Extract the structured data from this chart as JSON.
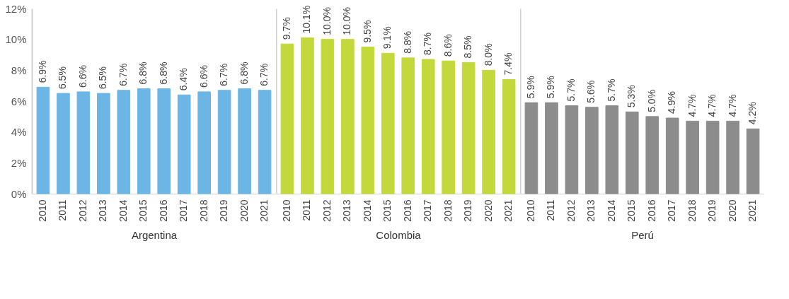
{
  "chart_data": [
    {
      "type": "bar",
      "xlabel": "Argentina",
      "categories": [
        "2010",
        "2011",
        "2012",
        "2013",
        "2014",
        "2015",
        "2016",
        "2017",
        "2018",
        "2019",
        "2020",
        "2021"
      ],
      "values": [
        6.9,
        6.5,
        6.6,
        6.5,
        6.7,
        6.8,
        6.8,
        6.4,
        6.6,
        6.7,
        6.8,
        6.7
      ],
      "value_labels": [
        "6.9%",
        "6.5%",
        "6.6%",
        "6.5%",
        "6.7%",
        "6.8%",
        "6.8%",
        "6.4%",
        "6.6%",
        "6.7%",
        "6.8%",
        "6.7%"
      ],
      "color": "#6cb6e6",
      "ylim": [
        0,
        12
      ],
      "yticks": [
        {
          "value": 0,
          "label": "0%"
        },
        {
          "value": 2,
          "label": "2%"
        },
        {
          "value": 4,
          "label": "4%"
        },
        {
          "value": 6,
          "label": "6%"
        },
        {
          "value": 8,
          "label": "8%"
        },
        {
          "value": 10,
          "label": "10%"
        },
        {
          "value": 12,
          "label": "12%"
        }
      ],
      "grid": false
    },
    {
      "type": "bar",
      "xlabel": "Colombia",
      "categories": [
        "2010",
        "2011",
        "2012",
        "2013",
        "2014",
        "2015",
        "2016",
        "2017",
        "2018",
        "2019",
        "2020",
        "2021"
      ],
      "values": [
        9.7,
        10.1,
        10.0,
        10.0,
        9.5,
        9.1,
        8.8,
        8.7,
        8.6,
        8.5,
        8.0,
        7.4
      ],
      "value_labels": [
        "9.7%",
        "10.1%",
        "10.0%",
        "10.0%",
        "9.5%",
        "9.1%",
        "8.8%",
        "8.7%",
        "8.6%",
        "8.5%",
        "8.0%",
        "7.4%"
      ],
      "color": "#c3d83a",
      "ylim": [
        0,
        12
      ],
      "grid": false,
      "tick_labels": "x"
    },
    {
      "type": "bar",
      "xlabel": "Perú",
      "categories": [
        "2010",
        "2011",
        "2012",
        "2013",
        "2014",
        "2015",
        "2016",
        "2017",
        "2018",
        "2019",
        "2020",
        "2021"
      ],
      "values": [
        5.9,
        5.9,
        5.7,
        5.6,
        5.7,
        5.3,
        5.0,
        4.9,
        4.7,
        4.7,
        4.7,
        4.2
      ],
      "value_labels": [
        "5.9%",
        "5.9%",
        "5.7%",
        "5.6%",
        "5.7%",
        "5.3%",
        "5.0%",
        "4.9%",
        "4.7%",
        "4.7%",
        "4.7%",
        "4.2%"
      ],
      "color": "#8c8c8c",
      "ylim": [
        0,
        12
      ],
      "grid": false,
      "tick_labels": "x"
    }
  ]
}
